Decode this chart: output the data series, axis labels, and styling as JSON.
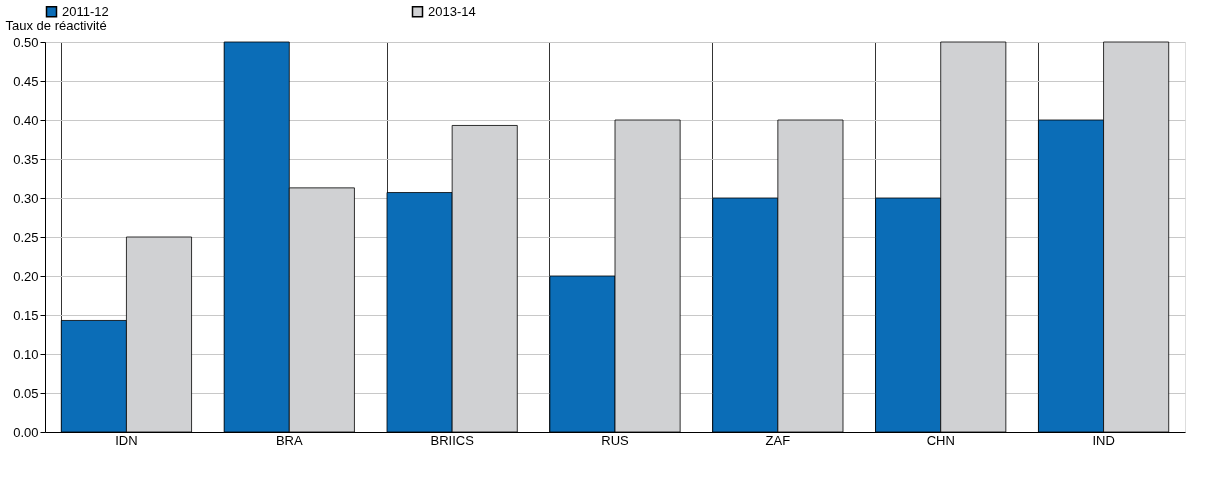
{
  "chart_data": {
    "type": "bar",
    "ylabel": "Taux de réactivité",
    "categories": [
      "IDN",
      "BRA",
      "BRIICS",
      "RUS",
      "ZAF",
      "CHN",
      "IND"
    ],
    "series": [
      {
        "name": "2011-12",
        "color": "#0b6db7",
        "values": [
          0.143,
          0.5,
          0.307,
          0.2,
          0.3,
          0.3,
          0.4
        ]
      },
      {
        "name": "2013-14",
        "color": "#d0d1d3",
        "values": [
          0.25,
          0.313,
          0.393,
          0.4,
          0.4,
          0.5,
          0.5
        ]
      }
    ],
    "ylim": [
      0,
      0.5
    ],
    "yticks": [
      {
        "value": 0,
        "label": "0.00"
      },
      0.05,
      {
        "value": 0.1,
        "label": "0.10"
      },
      0.15,
      {
        "value": 0.2,
        "label": "0.20"
      },
      0.25,
      {
        "value": 0.3,
        "label": "0.30"
      },
      0.35,
      {
        "value": 0.4,
        "label": "0.40"
      },
      0.45,
      {
        "value": 0.5,
        "label": "0.50"
      }
    ],
    "grid": true,
    "legend": "top"
  }
}
